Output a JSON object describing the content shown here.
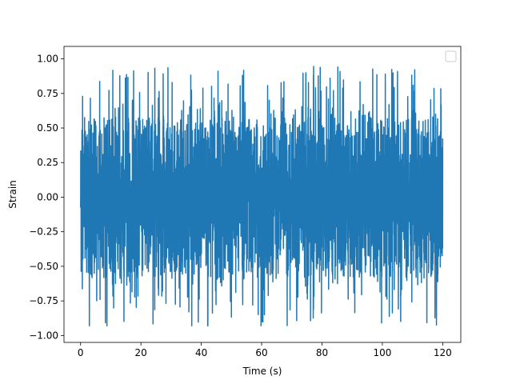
{
  "chart_data": {
    "type": "line",
    "title": "",
    "xlabel": "Time (s)",
    "ylabel": "Strain",
    "xlim": [
      -5.5,
      126
    ],
    "ylim": [
      -1.05,
      1.09
    ],
    "x_range": [
      0,
      120
    ],
    "xticks": [
      0,
      20,
      40,
      60,
      80,
      100,
      120
    ],
    "yticks": [
      -1.0,
      -0.75,
      -0.5,
      -0.25,
      0.0,
      0.25,
      0.5,
      0.75,
      1.0
    ],
    "xtick_labels": [
      "0",
      "20",
      "40",
      "60",
      "80",
      "100",
      "120"
    ],
    "ytick_labels": [
      "−1.00",
      "−0.75",
      "−0.50",
      "−0.25",
      "0.00",
      "0.25",
      "0.50",
      "0.75",
      "1.00"
    ],
    "grid": false,
    "legend": {
      "placement": "top-right",
      "entries": []
    },
    "series": [
      {
        "color": "#1f77b4",
        "description": "dense noise-like oscillation",
        "core_amplitude": 0.45,
        "peak_max": 1.0,
        "peak_min": -0.93
      }
    ]
  }
}
